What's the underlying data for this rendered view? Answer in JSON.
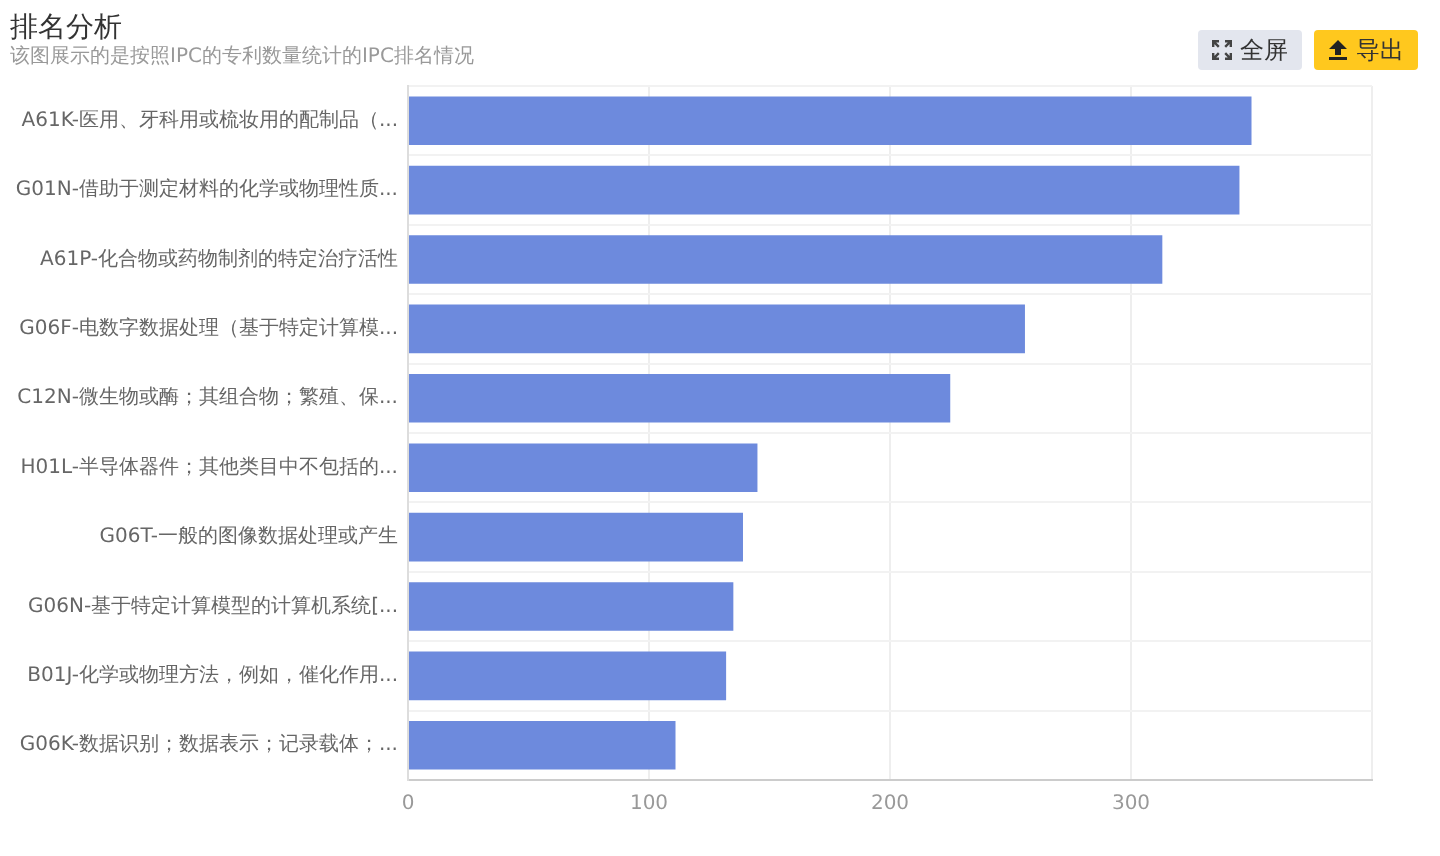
{
  "chart_data": {
    "type": "bar",
    "orientation": "horizontal",
    "title": "排名分析",
    "subtitle": "该图展示的是按照IPC的专利数量统计的IPC排名情况",
    "categories": [
      "A61K-医用、牙科用或梳妆用的配制品（...",
      "G01N-借助于测定材料的化学或物理性质...",
      "A61P-化合物或药物制剂的特定治疗活性",
      "G06F-电数字数据处理（基于特定计算模...",
      "C12N-微生物或酶；其组合物；繁殖、保...",
      "H01L-半导体器件；其他类目中不包括的...",
      "G06T-一般的图像数据处理或产生",
      "G06N-基于特定计算模型的计算机系统[...",
      "B01J-化学或物理方法，例如，催化作用...",
      "G06K-数据识别；数据表示；记录载体；..."
    ],
    "values": [
      350,
      345,
      313,
      256,
      225,
      145,
      139,
      135,
      132,
      111
    ],
    "color": "#6d8add",
    "xlim": [
      0,
      400
    ],
    "xticks": [
      0,
      100,
      200,
      300,
      {
        "value": 400,
        "label": null
      }
    ],
    "grid": true,
    "annotations": [
      "全屏",
      "导出"
    ]
  }
}
